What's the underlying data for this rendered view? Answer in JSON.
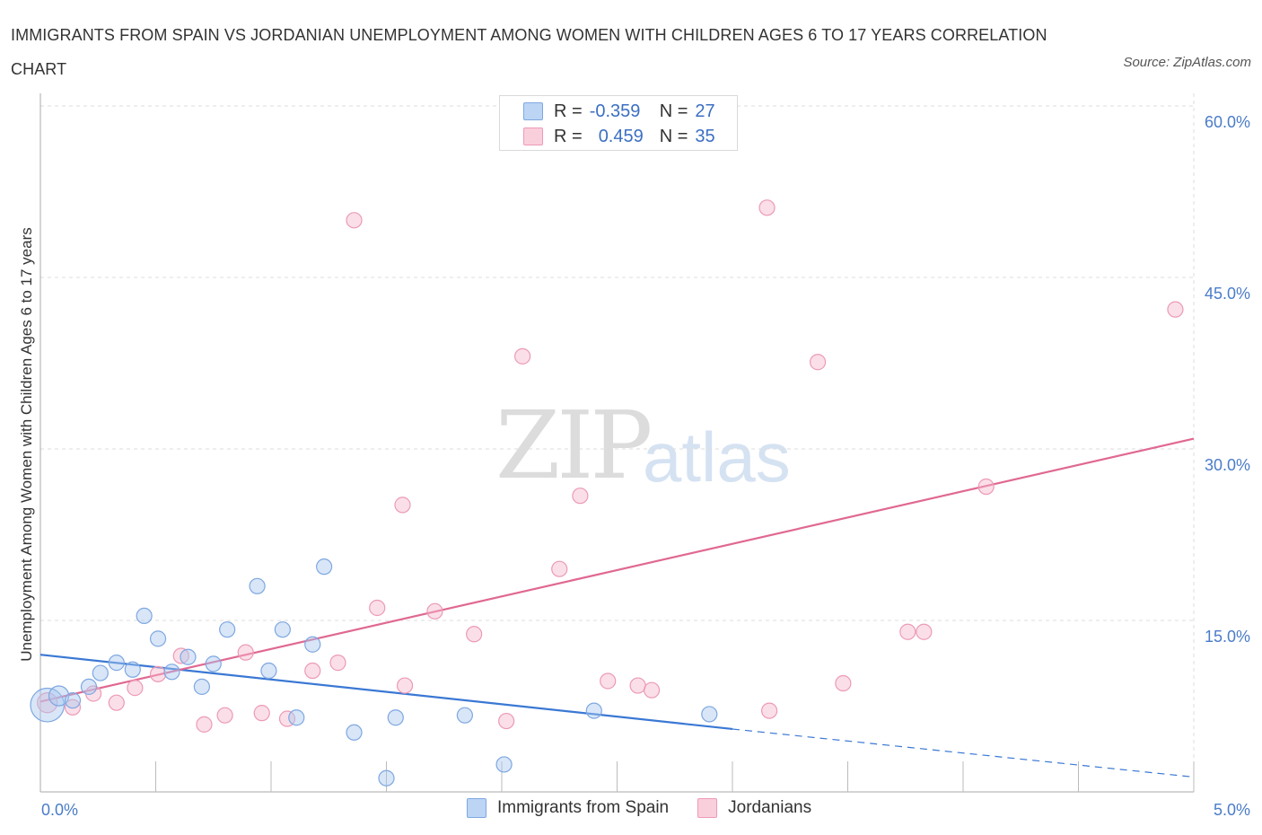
{
  "title": "IMMIGRANTS FROM SPAIN VS JORDANIAN UNEMPLOYMENT AMONG WOMEN WITH CHILDREN AGES 6 TO 17 YEARS CORRELATION CHART",
  "source": "Source: ZipAtlas.com",
  "watermark": {
    "zip": "ZIP",
    "atlas": "atlas"
  },
  "legend": {
    "rows": [
      {
        "r_label": "R =",
        "r_value": "-0.359",
        "n_label": "N =",
        "n_value": "27",
        "color": "#a9c7f0"
      },
      {
        "r_label": "R =",
        "r_value": "0.459",
        "n_label": "N =",
        "n_value": "35",
        "color": "#f6b9cc"
      }
    ]
  },
  "colors": {
    "blue": "#a9c7f0",
    "blue_line": "#3a78d4",
    "pink": "#f6b9cc",
    "pink_line": "#e06892",
    "grid": "#dddddd",
    "axis_label": "#4a7cc9"
  },
  "chart_data": {
    "type": "scatter",
    "title": "IMMIGRANTS FROM SPAIN VS JORDANIAN UNEMPLOYMENT AMONG WOMEN WITH CHILDREN AGES 6 TO 17 YEARS CORRELATION CHART",
    "xlabel": "",
    "ylabel": "Unemployment Among Women with Children Ages 6 to 17 years",
    "xlim": [
      0,
      5
    ],
    "ylim": [
      0,
      60
    ],
    "x_tick_labels": [
      "0.0%",
      "5.0%"
    ],
    "y_ticks": [
      15,
      30,
      45,
      60
    ],
    "y_tick_labels": [
      "15.0%",
      "30.0%",
      "45.0%",
      "60.0%"
    ],
    "grid": true,
    "legend_placement": "top-center",
    "series": [
      {
        "name": "Immigrants from Spain",
        "color": "#a9c7f0",
        "points": [
          {
            "x": 0.03,
            "y": 7.6,
            "size": 2.2
          },
          {
            "x": 0.08,
            "y": 8.4,
            "size": 1.3
          },
          {
            "x": 0.14,
            "y": 8.0,
            "size": 1
          },
          {
            "x": 0.21,
            "y": 9.2,
            "size": 1
          },
          {
            "x": 0.26,
            "y": 10.4,
            "size": 1
          },
          {
            "x": 0.33,
            "y": 11.3,
            "size": 1
          },
          {
            "x": 0.4,
            "y": 10.7,
            "size": 1
          },
          {
            "x": 0.45,
            "y": 15.4,
            "size": 1
          },
          {
            "x": 0.51,
            "y": 13.4,
            "size": 1
          },
          {
            "x": 0.57,
            "y": 10.5,
            "size": 1
          },
          {
            "x": 0.64,
            "y": 11.8,
            "size": 1
          },
          {
            "x": 0.7,
            "y": 9.2,
            "size": 1
          },
          {
            "x": 0.75,
            "y": 11.2,
            "size": 1
          },
          {
            "x": 0.81,
            "y": 14.2,
            "size": 1
          },
          {
            "x": 0.94,
            "y": 18.0,
            "size": 1
          },
          {
            "x": 0.99,
            "y": 10.6,
            "size": 1
          },
          {
            "x": 1.05,
            "y": 14.2,
            "size": 1
          },
          {
            "x": 1.11,
            "y": 6.5,
            "size": 1
          },
          {
            "x": 1.18,
            "y": 12.9,
            "size": 1
          },
          {
            "x": 1.23,
            "y": 19.7,
            "size": 1
          },
          {
            "x": 1.36,
            "y": 5.2,
            "size": 1
          },
          {
            "x": 1.5,
            "y": 1.2,
            "size": 1
          },
          {
            "x": 1.54,
            "y": 6.5,
            "size": 1
          },
          {
            "x": 1.84,
            "y": 6.7,
            "size": 1
          },
          {
            "x": 2.01,
            "y": 2.4,
            "size": 1
          },
          {
            "x": 2.4,
            "y": 7.1,
            "size": 1
          },
          {
            "x": 2.9,
            "y": 6.8,
            "size": 1
          }
        ],
        "trend": {
          "x_start": 0,
          "y_start": 12.0,
          "x_solid_end": 3.0,
          "y_solid_end": 5.5,
          "x_end": 5.0,
          "y_end": 1.3
        }
      },
      {
        "name": "Jordanians",
        "color": "#f6b9cc",
        "points": [
          {
            "x": 0.03,
            "y": 7.8,
            "size": 1.3
          },
          {
            "x": 0.14,
            "y": 7.4,
            "size": 1
          },
          {
            "x": 0.23,
            "y": 8.6,
            "size": 1
          },
          {
            "x": 0.33,
            "y": 7.8,
            "size": 1
          },
          {
            "x": 0.41,
            "y": 9.1,
            "size": 1
          },
          {
            "x": 0.51,
            "y": 10.3,
            "size": 1
          },
          {
            "x": 0.61,
            "y": 11.9,
            "size": 1
          },
          {
            "x": 0.71,
            "y": 5.9,
            "size": 1
          },
          {
            "x": 0.8,
            "y": 6.7,
            "size": 1
          },
          {
            "x": 0.89,
            "y": 12.2,
            "size": 1
          },
          {
            "x": 0.96,
            "y": 6.9,
            "size": 1
          },
          {
            "x": 1.07,
            "y": 6.4,
            "size": 1
          },
          {
            "x": 1.18,
            "y": 10.6,
            "size": 1
          },
          {
            "x": 1.29,
            "y": 11.3,
            "size": 1
          },
          {
            "x": 1.36,
            "y": 50.0,
            "size": 1
          },
          {
            "x": 1.46,
            "y": 16.1,
            "size": 1
          },
          {
            "x": 1.57,
            "y": 25.1,
            "size": 1
          },
          {
            "x": 1.58,
            "y": 9.3,
            "size": 1
          },
          {
            "x": 1.71,
            "y": 15.8,
            "size": 1
          },
          {
            "x": 1.88,
            "y": 13.8,
            "size": 1
          },
          {
            "x": 2.02,
            "y": 6.2,
            "size": 1
          },
          {
            "x": 2.09,
            "y": 38.1,
            "size": 1
          },
          {
            "x": 2.25,
            "y": 19.5,
            "size": 1
          },
          {
            "x": 2.34,
            "y": 25.9,
            "size": 1
          },
          {
            "x": 2.46,
            "y": 9.7,
            "size": 1
          },
          {
            "x": 2.59,
            "y": 9.3,
            "size": 1
          },
          {
            "x": 2.65,
            "y": 8.9,
            "size": 1
          },
          {
            "x": 3.15,
            "y": 51.1,
            "size": 1
          },
          {
            "x": 3.16,
            "y": 7.1,
            "size": 1
          },
          {
            "x": 3.37,
            "y": 37.6,
            "size": 1
          },
          {
            "x": 3.48,
            "y": 9.5,
            "size": 1
          },
          {
            "x": 3.76,
            "y": 14.0,
            "size": 1
          },
          {
            "x": 3.83,
            "y": 14.0,
            "size": 1
          },
          {
            "x": 4.1,
            "y": 26.7,
            "size": 1
          },
          {
            "x": 4.92,
            "y": 42.2,
            "size": 1
          }
        ],
        "trend": {
          "x_start": 0,
          "y_start": 7.9,
          "x_end": 5.0,
          "y_end": 30.9
        }
      }
    ]
  }
}
